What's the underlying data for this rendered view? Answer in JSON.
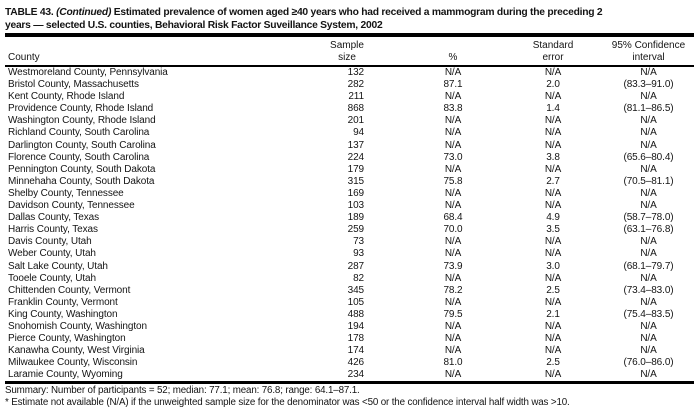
{
  "colors": {
    "background": "#ffffff",
    "text": "#141414",
    "rule": "#000000"
  },
  "title": {
    "label": "TABLE 43.",
    "continued": "(Continued)",
    "line1_rest": "Estimated prevalence of women aged ≥40 years who had received a mammogram during the preceding 2",
    "line2": "years — selected U.S. counties, Behavioral Risk Factor Suveillance System, 2002"
  },
  "table": {
    "columns": [
      {
        "name": "county",
        "label": "County"
      },
      {
        "name": "sample-size",
        "label": "Sample\nsize"
      },
      {
        "name": "percent",
        "label": "%"
      },
      {
        "name": "standard-error",
        "label": "Standard\nerror"
      },
      {
        "name": "confidence-interval",
        "label": "95% Confidence\ninterval"
      }
    ],
    "rows": [
      {
        "county": "Westmoreland County, Pennsylvania",
        "sample_size": "132",
        "percent": "N/A",
        "standard_error": "N/A",
        "confidence_interval": "N/A"
      },
      {
        "county": "Bristol County, Massachusetts",
        "sample_size": "282",
        "percent": "87.1",
        "standard_error": "2.0",
        "confidence_interval": "(83.3–91.0)"
      },
      {
        "county": "Kent County, Rhode Island",
        "sample_size": "211",
        "percent": "N/A",
        "standard_error": "N/A",
        "confidence_interval": "N/A"
      },
      {
        "county": "Providence County, Rhode Island",
        "sample_size": "868",
        "percent": "83.8",
        "standard_error": "1.4",
        "confidence_interval": "(81.1–86.5)"
      },
      {
        "county": "Washington County, Rhode Island",
        "sample_size": "201",
        "percent": "N/A",
        "standard_error": "N/A",
        "confidence_interval": "N/A"
      },
      {
        "county": "Richland County, South Carolina",
        "sample_size": "94",
        "percent": "N/A",
        "standard_error": "N/A",
        "confidence_interval": "N/A"
      },
      {
        "county": "Darlington County, South Carolina",
        "sample_size": "137",
        "percent": "N/A",
        "standard_error": "N/A",
        "confidence_interval": "N/A"
      },
      {
        "county": "Florence County, South Carolina",
        "sample_size": "224",
        "percent": "73.0",
        "standard_error": "3.8",
        "confidence_interval": "(65.6–80.4)"
      },
      {
        "county": "Pennington County, South Dakota",
        "sample_size": "179",
        "percent": "N/A",
        "standard_error": "N/A",
        "confidence_interval": "N/A"
      },
      {
        "county": "Minnehaha County, South Dakota",
        "sample_size": "315",
        "percent": "75.8",
        "standard_error": "2.7",
        "confidence_interval": "(70.5–81.1)"
      },
      {
        "county": "Shelby County, Tennessee",
        "sample_size": "169",
        "percent": "N/A",
        "standard_error": "N/A",
        "confidence_interval": "N/A"
      },
      {
        "county": "Davidson County, Tennessee",
        "sample_size": "103",
        "percent": "N/A",
        "standard_error": "N/A",
        "confidence_interval": "N/A"
      },
      {
        "county": "Dallas County, Texas",
        "sample_size": "189",
        "percent": "68.4",
        "standard_error": "4.9",
        "confidence_interval": "(58.7–78.0)"
      },
      {
        "county": "Harris County, Texas",
        "sample_size": "259",
        "percent": "70.0",
        "standard_error": "3.5",
        "confidence_interval": "(63.1–76.8)"
      },
      {
        "county": "Davis County, Utah",
        "sample_size": "73",
        "percent": "N/A",
        "standard_error": "N/A",
        "confidence_interval": "N/A"
      },
      {
        "county": "Weber County, Utah",
        "sample_size": "93",
        "percent": "N/A",
        "standard_error": "N/A",
        "confidence_interval": "N/A"
      },
      {
        "county": "Salt Lake County, Utah",
        "sample_size": "287",
        "percent": "73.9",
        "standard_error": "3.0",
        "confidence_interval": "(68.1–79.7)"
      },
      {
        "county": "Tooele County, Utah",
        "sample_size": "82",
        "percent": "N/A",
        "standard_error": "N/A",
        "confidence_interval": "N/A"
      },
      {
        "county": "Chittenden County, Vermont",
        "sample_size": "345",
        "percent": "78.2",
        "standard_error": "2.5",
        "confidence_interval": "(73.4–83.0)"
      },
      {
        "county": "Franklin County, Vermont",
        "sample_size": "105",
        "percent": "N/A",
        "standard_error": "N/A",
        "confidence_interval": "N/A"
      },
      {
        "county": "King County, Washington",
        "sample_size": "488",
        "percent": "79.5",
        "standard_error": "2.1",
        "confidence_interval": "(75.4–83.5)"
      },
      {
        "county": "Snohomish County, Washington",
        "sample_size": "194",
        "percent": "N/A",
        "standard_error": "N/A",
        "confidence_interval": "N/A"
      },
      {
        "county": "Pierce County, Washington",
        "sample_size": "178",
        "percent": "N/A",
        "standard_error": "N/A",
        "confidence_interval": "N/A"
      },
      {
        "county": "Kanawha County, West Virginia",
        "sample_size": "174",
        "percent": "N/A",
        "standard_error": "N/A",
        "confidence_interval": "N/A"
      },
      {
        "county": "Milwaukee County, Wisconsin",
        "sample_size": "426",
        "percent": "81.0",
        "standard_error": "2.5",
        "confidence_interval": "(76.0–86.0)"
      },
      {
        "county": "Laramie County, Wyoming",
        "sample_size": "234",
        "percent": "N/A",
        "standard_error": "N/A",
        "confidence_interval": "N/A"
      }
    ]
  },
  "summary": "Summary: Number of participants = 52; median: 77.1; mean: 76.8; range: 64.1–87.1.",
  "footnote": "* Estimate not available (N/A) if the unweighted sample size for the denominator was <50 or the confidence interval half width was >10."
}
